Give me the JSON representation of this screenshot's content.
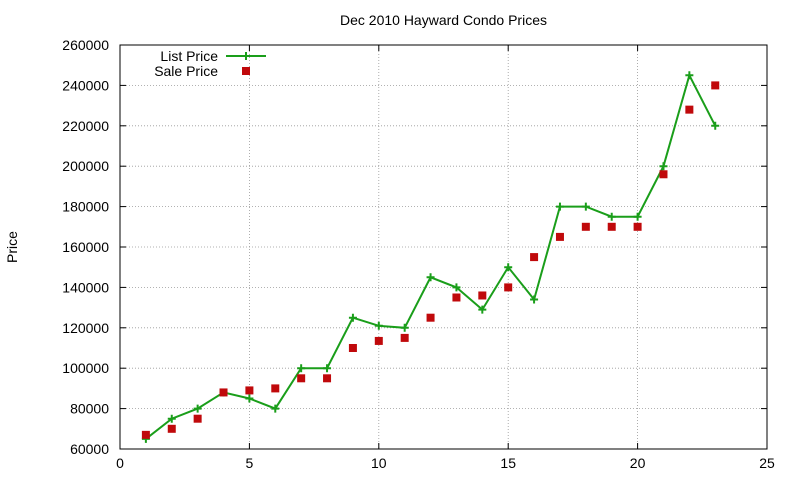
{
  "chart_data": {
    "type": "line",
    "title": "Dec 2010 Hayward Condo Prices",
    "xlabel": "",
    "ylabel": "Price",
    "xlim": [
      0,
      25
    ],
    "ylim": [
      60000,
      260000
    ],
    "x_ticks": [
      0,
      5,
      10,
      15,
      20,
      25
    ],
    "y_ticks": [
      60000,
      80000,
      100000,
      120000,
      140000,
      160000,
      180000,
      200000,
      220000,
      240000,
      260000
    ],
    "grid": true,
    "legend_position": "top-left",
    "series": [
      {
        "name": "List Price",
        "style": "line-plus",
        "color": "#1a9e1a",
        "x": [
          1,
          2,
          3,
          4,
          5,
          6,
          7,
          8,
          9,
          10,
          11,
          12,
          13,
          14,
          15,
          16,
          17,
          18,
          19,
          20,
          21,
          22,
          23
        ],
        "values": [
          65000,
          75000,
          80000,
          88000,
          85000,
          80000,
          100000,
          100000,
          125000,
          121000,
          120000,
          145000,
          140000,
          129000,
          150000,
          134000,
          180000,
          180000,
          175000,
          175000,
          200000,
          245000,
          220000
        ]
      },
      {
        "name": "Sale Price",
        "style": "square",
        "color": "#c0090b",
        "x": [
          1,
          2,
          3,
          4,
          5,
          6,
          7,
          8,
          9,
          10,
          11,
          12,
          13,
          14,
          15,
          16,
          17,
          18,
          19,
          20,
          21,
          22,
          23
        ],
        "values": [
          67000,
          70000,
          75000,
          88000,
          89000,
          90000,
          95000,
          95000,
          110000,
          113500,
          115000,
          125000,
          135000,
          136000,
          140000,
          155000,
          165000,
          170000,
          170000,
          170000,
          196000,
          228000,
          240000
        ]
      }
    ]
  }
}
